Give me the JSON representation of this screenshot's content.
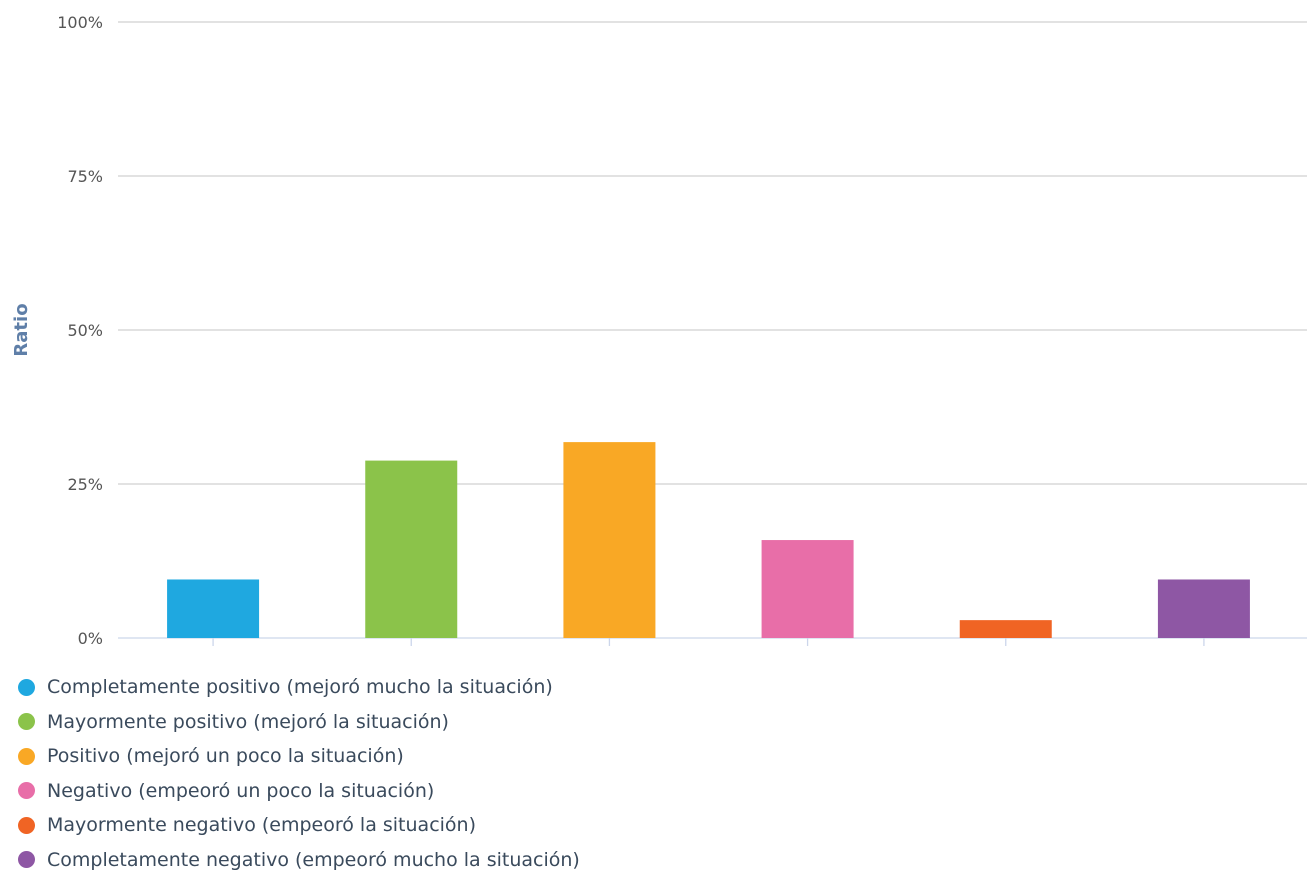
{
  "chart_data": {
    "type": "bar",
    "ylabel": "Ratio",
    "ylim": [
      0,
      100
    ],
    "y_ticks": [
      "0%",
      "25%",
      "50%",
      "75%",
      "100%"
    ],
    "y_tick_values": [
      0,
      25,
      50,
      75,
      100
    ],
    "grid": true,
    "legend_position": "bottom-left",
    "categories": [
      "Completamente positivo (mejoró mucho la situación)",
      "Mayormente positivo (mejoró la situación)",
      "Positivo (mejoró un poco la situación)",
      "Negativo (empeoró un poco la situación)",
      "Mayormente negativo (empeoró la situación)",
      "Completamente negativo (empeoró mucho la situación)"
    ],
    "values": [
      9.5,
      28.8,
      31.8,
      15.9,
      2.9,
      9.5
    ],
    "colors": [
      "#1fa8e0",
      "#8bc34a",
      "#f9a825",
      "#e86ea8",
      "#f06424",
      "#8e57a4"
    ]
  }
}
